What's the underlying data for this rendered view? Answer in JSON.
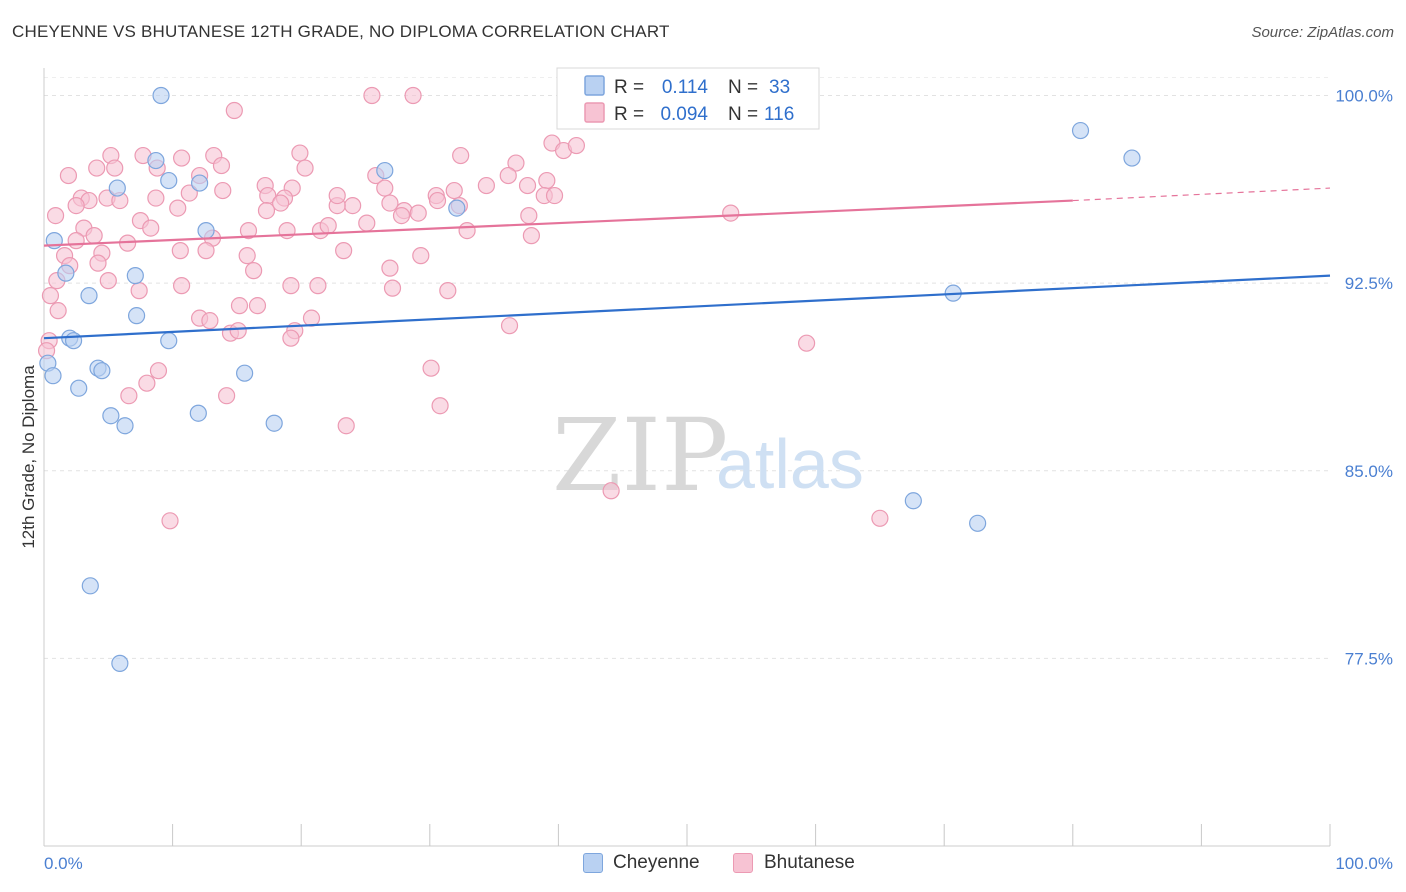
{
  "title": "CHEYENNE VS BHUTANESE 12TH GRADE, NO DIPLOMA CORRELATION CHART",
  "source": "Source: ZipAtlas.com",
  "watermark": {
    "zip": "ZIP",
    "atlas": "atlas"
  },
  "legend": {
    "rows": [
      {
        "r_label": "R =",
        "r_value": "0.114",
        "n_label": "N =",
        "n_value": "33"
      },
      {
        "r_label": "R =",
        "r_value": "0.094",
        "n_label": "N =",
        "n_value": "116"
      }
    ]
  },
  "bottom_legend": {
    "cheyenne": "Cheyenne",
    "bhutanese": "Bhutanese"
  },
  "colors": {
    "cheyenne_fill": "#b9d1f2",
    "cheyenne_stroke": "#7ea6dd",
    "cheyenne_line": "#2f6fcc",
    "bhutanese_fill": "#f7c3d3",
    "bhutanese_stroke": "#ec9ab3",
    "bhutanese_line": "#e5739a",
    "tick_text": "#4a7fd1"
  },
  "chart_data": {
    "type": "scatter",
    "title": "CHEYENNE VS BHUTANESE 12TH GRADE, NO DIPLOMA CORRELATION CHART",
    "xlabel": "",
    "ylabel": "12th Grade, No Diploma",
    "xlim": [
      0,
      100
    ],
    "ylim": [
      70.0,
      101.1
    ],
    "x_tick_labels": [
      "0.0%",
      "100.0%"
    ],
    "y_ticks": [
      77.5,
      85.0,
      92.5,
      100.0
    ],
    "y_tick_labels": [
      "77.5%",
      "85.0%",
      "92.5%",
      "100.0%"
    ],
    "grid": true,
    "series": [
      {
        "name": "Cheyenne",
        "R": 0.114,
        "N": 33,
        "trend": {
          "x": [
            0,
            100
          ],
          "y": [
            90.3,
            92.8
          ]
        },
        "points": [
          [
            9.1,
            100.0
          ],
          [
            0.8,
            94.2
          ],
          [
            1.7,
            92.9
          ],
          [
            3.5,
            92.0
          ],
          [
            2.0,
            90.3
          ],
          [
            0.3,
            89.3
          ],
          [
            2.3,
            90.2
          ],
          [
            0.7,
            88.8
          ],
          [
            2.7,
            88.3
          ],
          [
            4.2,
            89.1
          ],
          [
            4.5,
            89.0
          ],
          [
            7.1,
            92.8
          ],
          [
            7.2,
            91.2
          ],
          [
            9.7,
            90.2
          ],
          [
            5.2,
            87.2
          ],
          [
            6.3,
            86.8
          ],
          [
            12.0,
            87.3
          ],
          [
            15.6,
            88.9
          ],
          [
            17.9,
            86.9
          ],
          [
            8.7,
            97.4
          ],
          [
            9.7,
            96.6
          ],
          [
            12.1,
            96.5
          ],
          [
            12.6,
            94.6
          ],
          [
            5.7,
            96.3
          ],
          [
            26.5,
            97.0
          ],
          [
            32.1,
            95.5
          ],
          [
            80.6,
            98.6
          ],
          [
            84.6,
            97.5
          ],
          [
            70.7,
            92.1
          ],
          [
            67.6,
            83.8
          ],
          [
            72.6,
            82.9
          ],
          [
            3.6,
            80.4
          ],
          [
            5.9,
            77.3
          ]
        ]
      },
      {
        "name": "Bhutanese",
        "R": 0.094,
        "N": 116,
        "trend": {
          "x": [
            0,
            80
          ],
          "y": [
            94.0,
            95.8
          ]
        },
        "trend_dashed": {
          "x": [
            80,
            100
          ],
          "y": [
            95.8,
            96.3
          ]
        },
        "points": [
          [
            25.5,
            100.0
          ],
          [
            28.7,
            100.0
          ],
          [
            46.2,
            100.0
          ],
          [
            14.8,
            99.4
          ],
          [
            39.5,
            98.1
          ],
          [
            40.4,
            97.8
          ],
          [
            41.4,
            98.0
          ],
          [
            32.4,
            97.6
          ],
          [
            19.9,
            97.7
          ],
          [
            13.2,
            97.6
          ],
          [
            5.2,
            97.6
          ],
          [
            7.7,
            97.6
          ],
          [
            10.7,
            97.5
          ],
          [
            12.1,
            96.8
          ],
          [
            13.8,
            97.2
          ],
          [
            8.8,
            97.1
          ],
          [
            20.3,
            97.1
          ],
          [
            36.7,
            97.3
          ],
          [
            4.1,
            97.1
          ],
          [
            5.5,
            97.1
          ],
          [
            1.9,
            96.8
          ],
          [
            25.8,
            96.8
          ],
          [
            36.1,
            96.8
          ],
          [
            39.1,
            96.6
          ],
          [
            37.6,
            96.4
          ],
          [
            34.4,
            96.4
          ],
          [
            17.2,
            96.4
          ],
          [
            26.5,
            96.3
          ],
          [
            19.3,
            96.3
          ],
          [
            31.9,
            96.2
          ],
          [
            13.9,
            96.2
          ],
          [
            11.3,
            96.1
          ],
          [
            17.4,
            96.0
          ],
          [
            30.5,
            96.0
          ],
          [
            38.9,
            96.0
          ],
          [
            39.7,
            96.0
          ],
          [
            18.7,
            95.9
          ],
          [
            8.7,
            95.9
          ],
          [
            4.9,
            95.9
          ],
          [
            2.9,
            95.9
          ],
          [
            5.9,
            95.8
          ],
          [
            3.5,
            95.8
          ],
          [
            18.4,
            95.7
          ],
          [
            2.5,
            95.6
          ],
          [
            24.0,
            95.6
          ],
          [
            22.8,
            95.6
          ],
          [
            32.3,
            95.6
          ],
          [
            10.4,
            95.5
          ],
          [
            17.3,
            95.4
          ],
          [
            28.0,
            95.4
          ],
          [
            29.1,
            95.3
          ],
          [
            27.8,
            95.2
          ],
          [
            37.7,
            95.2
          ],
          [
            0.9,
            95.2
          ],
          [
            53.4,
            95.3
          ],
          [
            7.5,
            95.0
          ],
          [
            3.1,
            94.7
          ],
          [
            8.3,
            94.7
          ],
          [
            15.9,
            94.6
          ],
          [
            18.9,
            94.6
          ],
          [
            21.5,
            94.6
          ],
          [
            32.9,
            94.6
          ],
          [
            13.1,
            94.3
          ],
          [
            22.1,
            94.8
          ],
          [
            25.1,
            94.9
          ],
          [
            2.5,
            94.2
          ],
          [
            37.9,
            94.4
          ],
          [
            6.5,
            94.1
          ],
          [
            10.6,
            93.8
          ],
          [
            12.6,
            93.8
          ],
          [
            23.3,
            93.8
          ],
          [
            4.5,
            93.7
          ],
          [
            1.6,
            93.6
          ],
          [
            15.8,
            93.6
          ],
          [
            29.3,
            93.6
          ],
          [
            2.0,
            93.2
          ],
          [
            4.2,
            93.3
          ],
          [
            16.3,
            93.0
          ],
          [
            26.9,
            93.1
          ],
          [
            1.0,
            92.6
          ],
          [
            10.7,
            92.4
          ],
          [
            19.2,
            92.4
          ],
          [
            21.3,
            92.4
          ],
          [
            27.1,
            92.3
          ],
          [
            31.4,
            92.2
          ],
          [
            0.5,
            92.0
          ],
          [
            7.4,
            92.2
          ],
          [
            15.2,
            91.6
          ],
          [
            16.6,
            91.6
          ],
          [
            1.1,
            91.4
          ],
          [
            12.1,
            91.1
          ],
          [
            12.9,
            91.0
          ],
          [
            20.8,
            91.1
          ],
          [
            36.2,
            90.8
          ],
          [
            14.5,
            90.5
          ],
          [
            19.5,
            90.6
          ],
          [
            19.2,
            90.3
          ],
          [
            59.3,
            90.1
          ],
          [
            0.4,
            90.2
          ],
          [
            0.2,
            89.8
          ],
          [
            8.9,
            89.0
          ],
          [
            30.1,
            89.1
          ],
          [
            8.0,
            88.5
          ],
          [
            6.6,
            88.0
          ],
          [
            14.2,
            88.0
          ],
          [
            30.8,
            87.6
          ],
          [
            23.5,
            86.8
          ],
          [
            44.1,
            84.2
          ],
          [
            65.0,
            83.1
          ],
          [
            9.8,
            83.0
          ],
          [
            15.1,
            90.6
          ],
          [
            22.8,
            96.0
          ],
          [
            26.9,
            95.7
          ],
          [
            30.6,
            95.8
          ],
          [
            3.9,
            94.4
          ],
          [
            5.0,
            92.6
          ]
        ]
      }
    ]
  }
}
